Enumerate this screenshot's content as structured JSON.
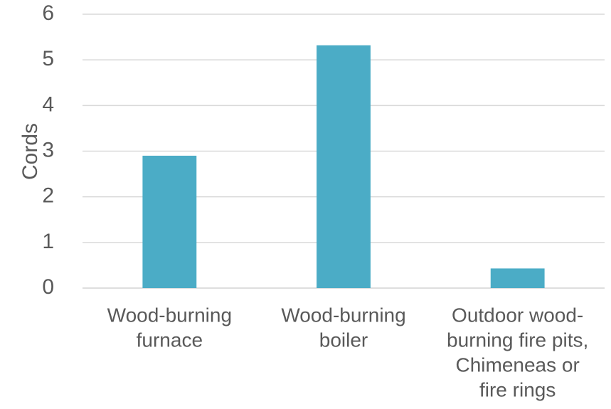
{
  "chart_data": {
    "type": "bar",
    "title": "",
    "xlabel": "",
    "ylabel": "Cords",
    "categories": [
      [
        "Wood-burning",
        "furnace"
      ],
      [
        "Wood-burning",
        "boiler"
      ],
      [
        "Outdoor wood-",
        "burning fire pits,",
        "Chimeneas or",
        "fire rings"
      ]
    ],
    "values": [
      2.9,
      5.32,
      0.43
    ],
    "ylim": [
      0,
      6
    ],
    "yticks": [
      0,
      1,
      2,
      3,
      4,
      5,
      6
    ],
    "grid": true,
    "legend": "none",
    "bar_color": "#4BACC6",
    "grid_color": "#D9D9D9",
    "text_color": "#595959"
  }
}
